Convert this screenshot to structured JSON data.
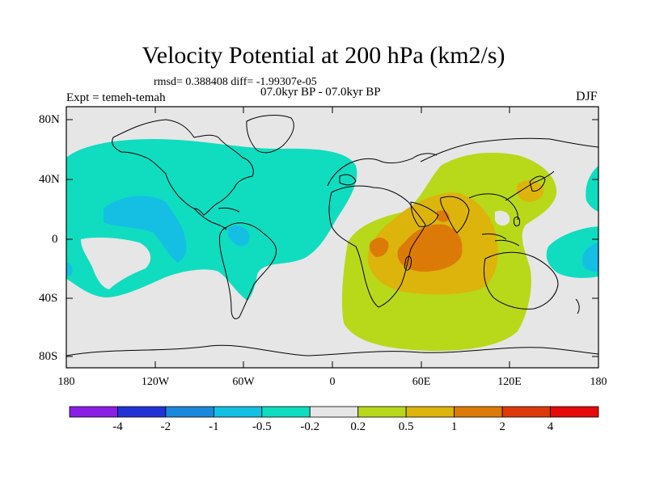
{
  "title": "Velocity Potential at 200 hPa (km2/s)",
  "stats": "rmsd= 0.388408 diff= -1.99307e-05",
  "period": "07.0kyr BP - 07.0kyr BP",
  "expt": "Expt = temeh-temah",
  "season": "DJF",
  "lat_labels": [
    "80N",
    "40N",
    "0",
    "40S",
    "80S"
  ],
  "lon_labels": [
    "180",
    "120W",
    "60W",
    "0",
    "60E",
    "120E",
    "180"
  ],
  "colorbar": {
    "labels": [
      "-4",
      "-2",
      "-1",
      "-0.5",
      "-0.2",
      "0.2",
      "0.5",
      "1",
      "2",
      "4"
    ],
    "colors": [
      "#8a1ee6",
      "#2233d6",
      "#1a88dc",
      "#14bfe3",
      "#10dcc0",
      "#e6e6e6",
      "#b8d81a",
      "#dcb40c",
      "#dc7a08",
      "#dc3a08",
      "#e60a0a"
    ]
  },
  "colors": {
    "background_field": "#e6e6e6",
    "neg_light": "#10dcc0",
    "neg_mid": "#14bfe3",
    "pos_light": "#b8d81a",
    "pos_mid": "#dcb40c",
    "pos_strong": "#dc7a08",
    "pos_max": "#dc3a08"
  }
}
